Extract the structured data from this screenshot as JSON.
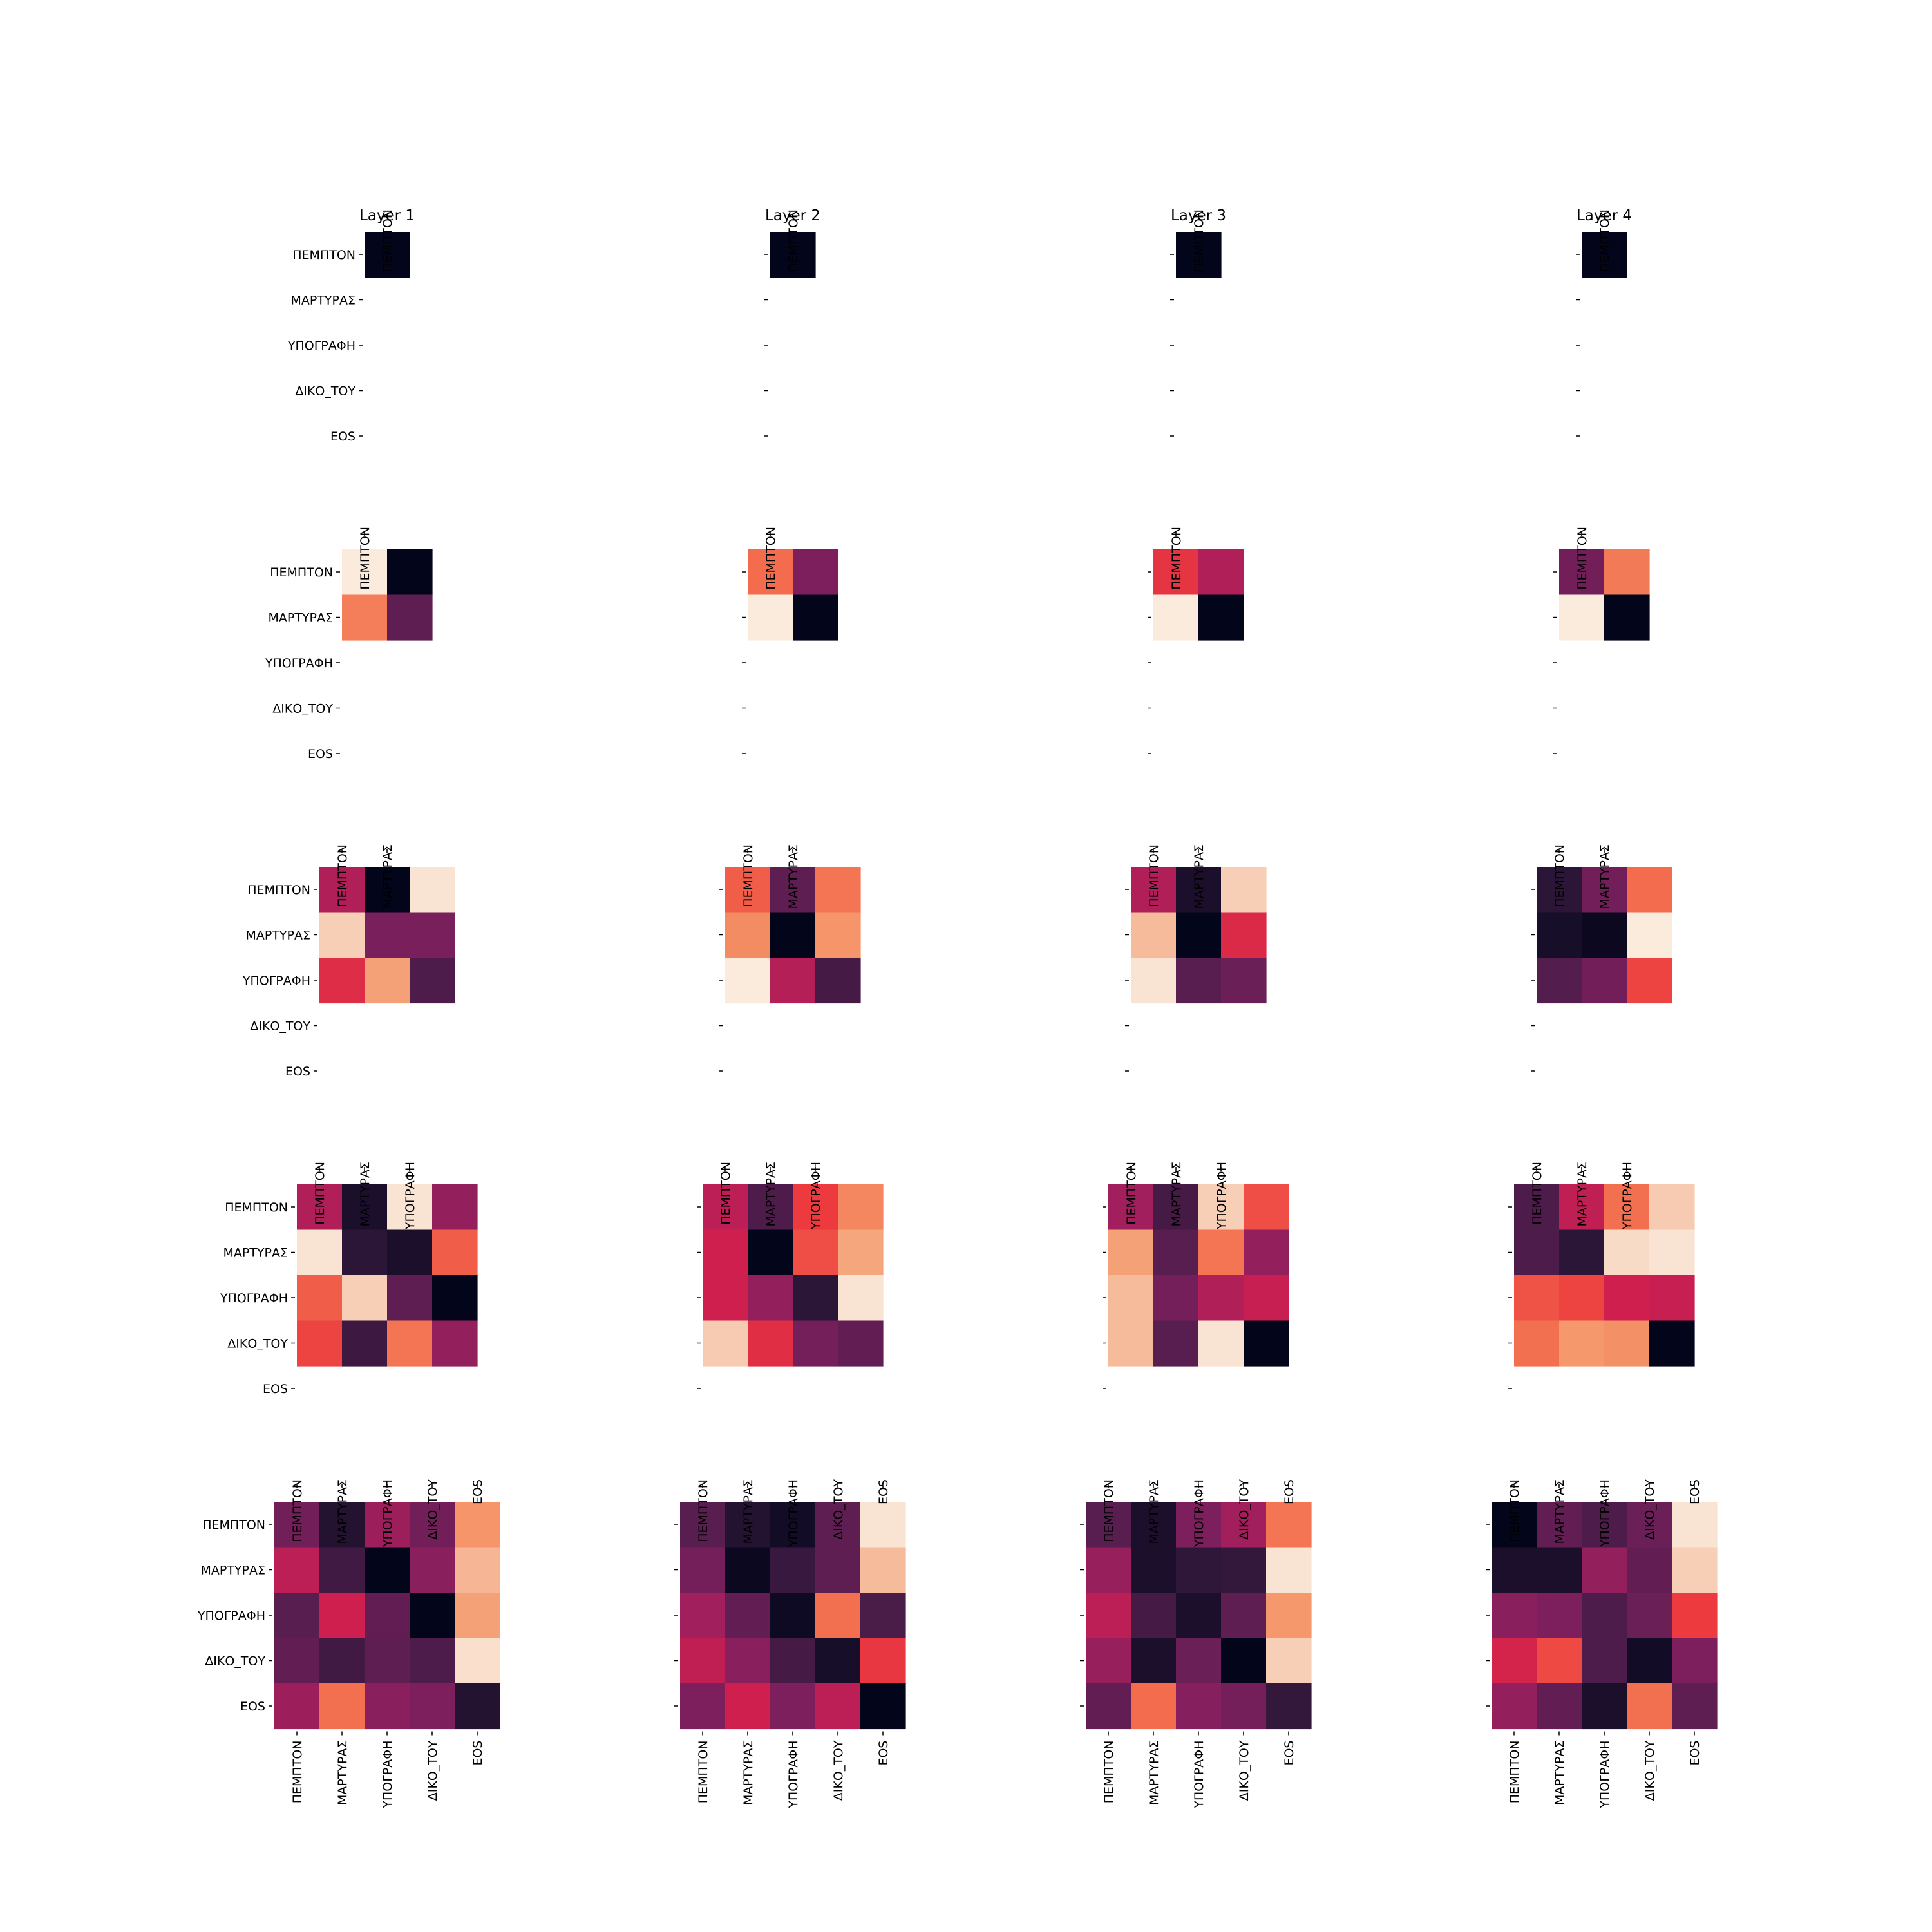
{
  "tokens": [
    "ΠΕΜΠΤΟΝ",
    "ΜΑΡΤΥΡΑΣ",
    "ΥΠΟΓΡΑΦΗ",
    "ΔΙΚΟ_ΤΟΥ",
    "EOS"
  ],
  "colormap": [
    "#03051a",
    "#2b1637",
    "#571e4f",
    "#7d1f5d",
    "#a91f5c",
    "#cf1f4e",
    "#ec3a3f",
    "#f26c4d",
    "#f5996c",
    "#f6c3a6",
    "#faebdd"
  ],
  "chart_data": [
    {
      "type": "heatmap",
      "title": "Layer 1",
      "step": 1,
      "x_labels": [
        "ΠΕΜΠΤΟΝ"
      ],
      "y_labels": [
        "ΠΕΜΠΤΟΝ",
        "ΜΑΡΤΥΡΑΣ",
        "ΥΠΟΓΡΑΦΗ",
        "ΔΙΚΟ_ΤΟΥ",
        "EOS"
      ],
      "values": [
        [
          0.0
        ]
      ]
    },
    {
      "type": "heatmap",
      "title": "Layer 2",
      "step": 1,
      "x_labels": [
        "ΠΕΜΠΤΟΝ"
      ],
      "y_labels": [],
      "values": [
        [
          0.0
        ]
      ]
    },
    {
      "type": "heatmap",
      "title": "Layer 3",
      "step": 1,
      "x_labels": [
        "ΠΕΜΠΤΟΝ"
      ],
      "y_labels": [],
      "values": [
        [
          0.0
        ]
      ]
    },
    {
      "type": "heatmap",
      "title": "Layer 4",
      "step": 1,
      "x_labels": [
        "ΠΕΜΠΤΟΝ"
      ],
      "y_labels": [],
      "values": [
        [
          0.0
        ]
      ]
    },
    {
      "type": "heatmap",
      "title": "",
      "step": 2,
      "x_labels": [
        "ΠΕΜΠΤΟΝ"
      ],
      "y_labels": [
        "ΠΕΜΠΤΟΝ",
        "ΜΑΡΤΥΡΑΣ",
        "ΥΠΟΓΡΑΦΗ",
        "ΔΙΚΟ_ΤΟΥ",
        "EOS"
      ],
      "values": [
        [
          1.0,
          0.0
        ],
        [
          0.74,
          0.22
        ]
      ]
    },
    {
      "type": "heatmap",
      "title": "",
      "step": 2,
      "x_labels": [
        "ΠΕΜΠΤΟΝ"
      ],
      "y_labels": [],
      "values": [
        [
          0.7,
          0.3
        ],
        [
          1.0,
          0.0
        ]
      ]
    },
    {
      "type": "heatmap",
      "title": "",
      "step": 2,
      "x_labels": [
        "ΠΕΜΠΤΟΝ"
      ],
      "y_labels": [],
      "values": [
        [
          0.58,
          0.42
        ],
        [
          1.0,
          0.0
        ]
      ]
    },
    {
      "type": "heatmap",
      "title": "",
      "step": 2,
      "x_labels": [
        "ΠΕΜΠΤΟΝ"
      ],
      "y_labels": [],
      "values": [
        [
          0.27,
          0.73
        ],
        [
          1.0,
          0.0
        ]
      ]
    },
    {
      "type": "heatmap",
      "title": "",
      "step": 3,
      "x_labels": [
        "ΠΕΜΠΤΟΝ",
        "ΜΑΡΤΥΡΑΣ"
      ],
      "y_labels": [
        "ΠΕΜΠΤΟΝ",
        "ΜΑΡΤΥΡΑΣ",
        "ΥΠΟΓΡΑΦΗ",
        "ΔΙΚΟ_ΤΟΥ",
        "EOS"
      ],
      "values": [
        [
          0.42,
          0.0,
          0.98
        ],
        [
          0.93,
          0.29,
          0.29
        ],
        [
          0.55,
          0.82,
          0.18
        ]
      ]
    },
    {
      "type": "heatmap",
      "title": "",
      "step": 3,
      "x_labels": [
        "ΠΕΜΠΤΟΝ",
        "ΜΑΡΤΥΡΑΣ"
      ],
      "y_labels": [],
      "values": [
        [
          0.67,
          0.22,
          0.72
        ],
        [
          0.77,
          0.0,
          0.79
        ],
        [
          1.0,
          0.43,
          0.16
        ]
      ]
    },
    {
      "type": "heatmap",
      "title": "",
      "step": 3,
      "x_labels": [
        "ΠΕΜΠΤΟΝ",
        "ΜΑΡΤΥΡΑΣ"
      ],
      "y_labels": [],
      "values": [
        [
          0.42,
          0.06,
          0.93
        ],
        [
          0.88,
          0.0,
          0.54
        ],
        [
          0.98,
          0.2,
          0.25
        ]
      ]
    },
    {
      "type": "heatmap",
      "title": "",
      "step": 3,
      "x_labels": [
        "ΠΕΜΠΤΟΝ",
        "ΜΑΡΤΥΡΑΣ"
      ],
      "y_labels": [],
      "values": [
        [
          0.1,
          0.27,
          0.7
        ],
        [
          0.05,
          0.02,
          1.0
        ],
        [
          0.19,
          0.27,
          0.62
        ]
      ]
    },
    {
      "type": "heatmap",
      "title": "",
      "step": 4,
      "x_labels": [
        "ΠΕΜΠΤΟΝ",
        "ΜΑΡΤΥΡΑΣ",
        "ΥΠΟΓΡΑΦΗ"
      ],
      "y_labels": [
        "ΠΕΜΠΤΟΝ",
        "ΜΑΡΤΥΡΑΣ",
        "ΥΠΟΓΡΑΦΗ",
        "ΔΙΚΟ_ΤΟΥ",
        "EOS"
      ],
      "values": [
        [
          0.42,
          0.06,
          0.98,
          0.35
        ],
        [
          0.98,
          0.1,
          0.06,
          0.67
        ],
        [
          0.67,
          0.93,
          0.22,
          0.0
        ],
        [
          0.62,
          0.14,
          0.72,
          0.35
        ]
      ]
    },
    {
      "type": "heatmap",
      "title": "",
      "step": 4,
      "x_labels": [
        "ΠΕΜΠΤΟΝ",
        "ΜΑΡΤΥΡΑΣ",
        "ΥΠΟΓΡΑΦΗ"
      ],
      "y_labels": [],
      "values": [
        [
          0.45,
          0.18,
          0.6,
          0.76
        ],
        [
          0.5,
          0.0,
          0.64,
          0.83
        ],
        [
          0.5,
          0.35,
          0.1,
          0.98
        ],
        [
          0.92,
          0.56,
          0.28,
          0.23
        ]
      ]
    },
    {
      "type": "heatmap",
      "title": "",
      "step": 4,
      "x_labels": [
        "ΠΕΜΠΤΟΝ",
        "ΜΑΡΤΥΡΑΣ",
        "ΥΠΟΓΡΑΦΗ"
      ],
      "y_labels": [],
      "values": [
        [
          0.38,
          0.16,
          0.93,
          0.64
        ],
        [
          0.82,
          0.2,
          0.72,
          0.35
        ],
        [
          0.88,
          0.28,
          0.42,
          0.48
        ],
        [
          0.88,
          0.2,
          0.98,
          0.0
        ]
      ]
    },
    {
      "type": "heatmap",
      "title": "",
      "step": 4,
      "x_labels": [
        "ΠΕΜΠΤΟΝ",
        "ΜΑΡΤΥΡΑΣ",
        "ΥΠΟΓΡΑΦΗ"
      ],
      "y_labels": [],
      "values": [
        [
          0.18,
          0.46,
          0.71,
          0.92
        ],
        [
          0.18,
          0.1,
          0.96,
          0.98
        ],
        [
          0.65,
          0.62,
          0.5,
          0.48
        ],
        [
          0.71,
          0.8,
          0.78,
          0.0
        ]
      ]
    },
    {
      "type": "heatmap",
      "title": "",
      "step": 5,
      "x_labels": [
        "ΠΕΜΠΤΟΝ",
        "ΜΑΡΤΥΡΑΣ",
        "ΥΠΟΓΡΑΦΗ",
        "ΔΙΚΟ_ΤΟΥ",
        "EOS"
      ],
      "y_labels": [
        "ΠΕΜΠΤΟΝ",
        "ΜΑΡΤΥΡΑΣ",
        "ΥΠΟΓΡΑΦΗ",
        "ΔΙΚΟ_ΤΟΥ",
        "EOS"
      ],
      "values": [
        [
          0.27,
          0.08,
          0.37,
          0.27,
          0.79
        ],
        [
          0.45,
          0.15,
          0.0,
          0.33,
          0.87
        ],
        [
          0.2,
          0.5,
          0.23,
          0.0,
          0.82
        ],
        [
          0.23,
          0.15,
          0.22,
          0.18,
          0.97
        ],
        [
          0.37,
          0.71,
          0.33,
          0.3,
          0.08
        ]
      ]
    },
    {
      "type": "heatmap",
      "title": "",
      "step": 5,
      "x_labels": [
        "ΠΕΜΠΤΟΝ",
        "ΜΑΡΤΥΡΑΣ",
        "ΥΠΟΓΡΑΦΗ",
        "ΔΙΚΟ_ΤΟΥ",
        "EOS"
      ],
      "y_labels": [],
      "values": [
        [
          0.2,
          0.08,
          0.04,
          0.22,
          0.98
        ],
        [
          0.28,
          0.02,
          0.13,
          0.22,
          0.88
        ],
        [
          0.38,
          0.23,
          0.03,
          0.71,
          0.17
        ],
        [
          0.46,
          0.33,
          0.16,
          0.05,
          0.59
        ],
        [
          0.3,
          0.5,
          0.3,
          0.45,
          0.0
        ]
      ]
    },
    {
      "type": "heatmap",
      "title": "",
      "step": 5,
      "x_labels": [
        "ΠΕΜΠΤΟΝ",
        "ΜΑΡΤΥΡΑΣ",
        "ΥΠΟΓΡΑΦΗ",
        "ΔΙΚΟ_ΤΟΥ",
        "EOS"
      ],
      "y_labels": [],
      "values": [
        [
          0.2,
          0.06,
          0.3,
          0.38,
          0.72
        ],
        [
          0.36,
          0.06,
          0.11,
          0.12,
          0.98
        ],
        [
          0.45,
          0.16,
          0.06,
          0.22,
          0.8
        ],
        [
          0.36,
          0.06,
          0.25,
          0.0,
          0.93
        ],
        [
          0.23,
          0.7,
          0.32,
          0.28,
          0.12
        ]
      ]
    },
    {
      "type": "heatmap",
      "title": "",
      "step": 5,
      "x_labels": [
        "ΠΕΜΠΤΟΝ",
        "ΜΑΡΤΥΡΑΣ",
        "ΥΠΟΓΡΑΦΗ",
        "ΔΙΚΟ_ΤΟΥ",
        "EOS"
      ],
      "y_labels": [],
      "values": [
        [
          0.0,
          0.23,
          0.18,
          0.25,
          0.98
        ],
        [
          0.06,
          0.06,
          0.35,
          0.23,
          0.93
        ],
        [
          0.33,
          0.3,
          0.18,
          0.25,
          0.6
        ],
        [
          0.52,
          0.63,
          0.18,
          0.04,
          0.3
        ],
        [
          0.35,
          0.23,
          0.06,
          0.71,
          0.22
        ]
      ]
    }
  ]
}
